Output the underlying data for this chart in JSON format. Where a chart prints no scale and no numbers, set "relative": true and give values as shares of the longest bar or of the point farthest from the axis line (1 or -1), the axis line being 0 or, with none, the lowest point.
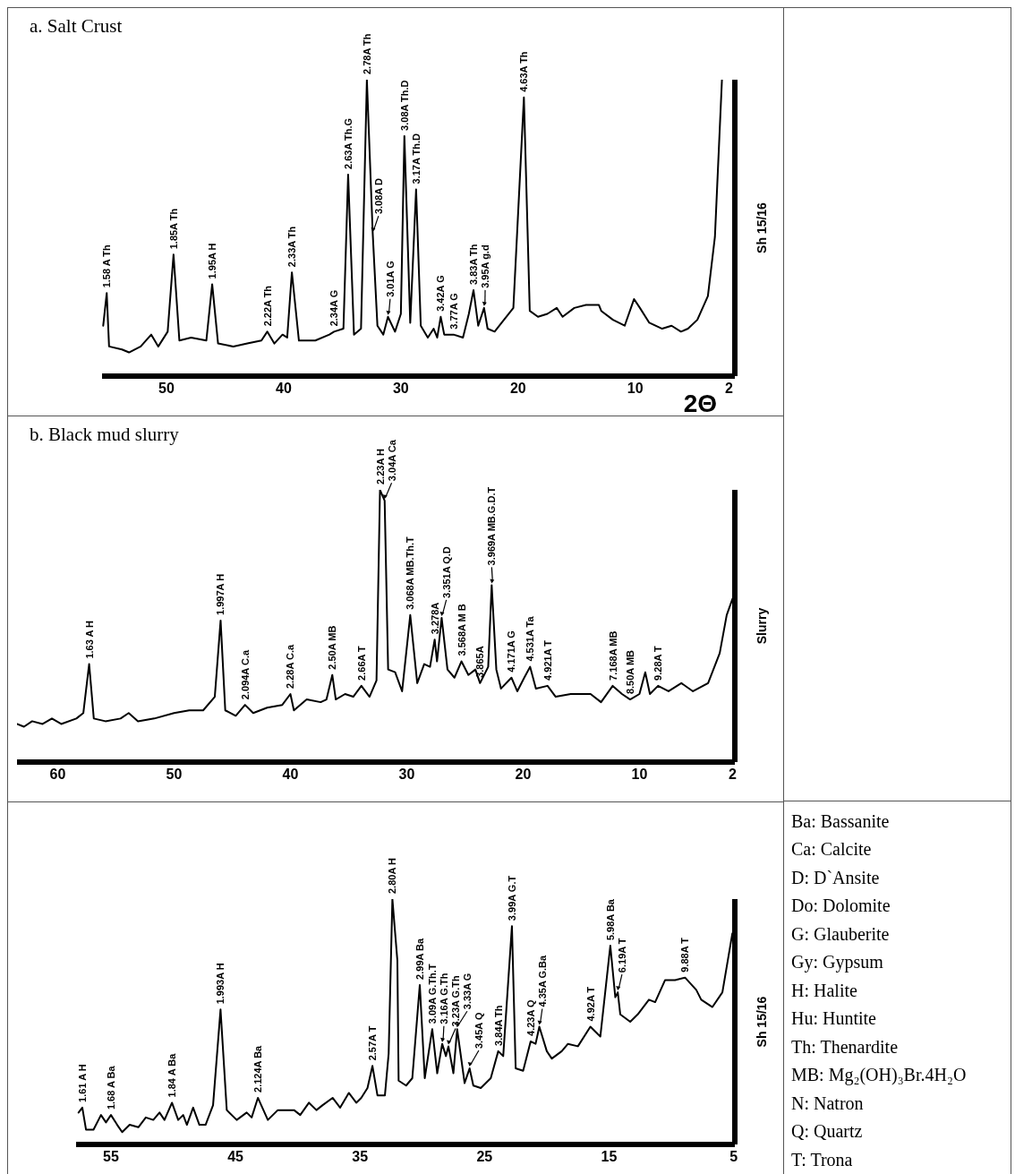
{
  "chart_data": [
    {
      "type": "line",
      "title": "a. Salt Crust",
      "xlabel": "2Θ",
      "ylabel": "Sh 15/16",
      "relative": true,
      "color": "#000000",
      "xlim": [
        55.5,
        1.5
      ],
      "xticks": [
        50,
        40,
        30,
        20,
        10,
        2
      ],
      "x": [
        55.4,
        55.1,
        54.9,
        53.8,
        53.2,
        52.2,
        51.3,
        50.7,
        49.9,
        49.4,
        48.9,
        47.9,
        46.6,
        46.1,
        45.6,
        44.3,
        43.1,
        41.9,
        41.4,
        40.8,
        40.1,
        39.7,
        39.3,
        38.7,
        37.3,
        36.1,
        35.7,
        34.9,
        34.5,
        34.0,
        33.4,
        32.9,
        32.4,
        32.0,
        31.5,
        31.1,
        30.5,
        30.0,
        29.7,
        29.2,
        28.7,
        28.3,
        27.7,
        27.2,
        26.9,
        26.6,
        26.3,
        25.5,
        24.7,
        24.2,
        23.8,
        23.4,
        22.9,
        22.6,
        22.0,
        21.4,
        20.4,
        19.5,
        19.0,
        18.3,
        17.5,
        16.7,
        16.2,
        15.2,
        14.2,
        13.1,
        12.9,
        11.9,
        10.9,
        10.1,
        9.6,
        8.8,
        7.7,
        6.9,
        6.1,
        5.5,
        4.7,
        3.8,
        3.2,
        2.6
      ],
      "values": [
        0.17,
        0.28,
        0.1,
        0.09,
        0.08,
        0.1,
        0.14,
        0.1,
        0.15,
        0.41,
        0.12,
        0.13,
        0.12,
        0.31,
        0.11,
        0.1,
        0.11,
        0.12,
        0.15,
        0.11,
        0.14,
        0.13,
        0.35,
        0.12,
        0.12,
        0.14,
        0.15,
        0.16,
        0.68,
        0.14,
        0.16,
        1.0,
        0.48,
        0.17,
        0.14,
        0.2,
        0.15,
        0.21,
        0.81,
        0.18,
        0.63,
        0.17,
        0.13,
        0.16,
        0.13,
        0.2,
        0.14,
        0.14,
        0.13,
        0.21,
        0.29,
        0.17,
        0.23,
        0.16,
        0.15,
        0.18,
        0.23,
        0.94,
        0.22,
        0.2,
        0.21,
        0.23,
        0.2,
        0.23,
        0.24,
        0.24,
        0.22,
        0.19,
        0.17,
        0.26,
        0.23,
        0.18,
        0.16,
        0.17,
        0.15,
        0.16,
        0.19,
        0.27,
        0.47,
        1.0
      ],
      "annotations": [
        {
          "text": "1.58 A Th",
          "x": 55.1,
          "y": 0.28
        },
        {
          "text": "1.85A Th",
          "x": 49.4,
          "y": 0.41
        },
        {
          "text": "1.95A H",
          "x": 46.1,
          "y": 0.31
        },
        {
          "text": "2.22A Th",
          "x": 41.4,
          "y": 0.15
        },
        {
          "text": "2.33A Th",
          "x": 39.3,
          "y": 0.35
        },
        {
          "text": "2.34A G",
          "x": 35.7,
          "y": 0.15
        },
        {
          "text": "2.63A Th.G",
          "x": 34.5,
          "y": 0.68
        },
        {
          "text": "2.78A Th",
          "x": 32.9,
          "y": 1.0
        },
        {
          "text": "3.08A D",
          "x": 32.4,
          "y": 0.48
        },
        {
          "text": "3.01A G",
          "x": 31.1,
          "y": 0.2
        },
        {
          "text": "3.08A Th.D",
          "x": 29.7,
          "y": 0.81
        },
        {
          "text": "3.17A Th.D",
          "x": 28.7,
          "y": 0.63
        },
        {
          "text": "3.42A G",
          "x": 26.6,
          "y": 0.2
        },
        {
          "text": "3.77A G",
          "x": 25.5,
          "y": 0.14
        },
        {
          "text": "3.83A Th",
          "x": 23.8,
          "y": 0.29
        },
        {
          "text": "3.95A g.d",
          "x": 22.9,
          "y": 0.23
        },
        {
          "text": "4.63A Th",
          "x": 19.5,
          "y": 0.94
        }
      ]
    },
    {
      "type": "line",
      "title": "b. Black mud slurry",
      "ylabel": "Slurry",
      "relative": true,
      "color": "#000000",
      "xlim": [
        63.5,
        1.8
      ],
      "xticks": [
        60,
        50,
        40,
        30,
        20,
        10,
        2
      ],
      "x": [
        63.5,
        62.9,
        62.2,
        61.3,
        60.5,
        59.7,
        58.4,
        57.8,
        57.3,
        56.9,
        55.9,
        54.6,
        53.9,
        53.1,
        51.7,
        50.0,
        48.7,
        47.5,
        46.5,
        46.0,
        45.6,
        44.7,
        43.9,
        43.2,
        42.0,
        40.7,
        40.0,
        39.7,
        38.6,
        37.4,
        36.9,
        36.4,
        36.1,
        35.3,
        34.6,
        33.9,
        33.2,
        32.6,
        32.3,
        32.1,
        31.9,
        31.6,
        31.0,
        30.4,
        29.7,
        29.1,
        28.5,
        28.0,
        27.6,
        27.4,
        27.0,
        26.5,
        25.9,
        25.3,
        24.7,
        24.1,
        23.7,
        23.0,
        22.7,
        22.3,
        21.9,
        21.0,
        20.5,
        19.9,
        19.4,
        18.9,
        17.9,
        17.2,
        15.9,
        14.2,
        13.3,
        12.3,
        11.5,
        10.8,
        10.0,
        9.5,
        9.1,
        8.4,
        7.5,
        6.4,
        5.4,
        4.1,
        3.1,
        2.5,
        2.0
      ],
      "values": [
        0.14,
        0.13,
        0.15,
        0.14,
        0.16,
        0.14,
        0.16,
        0.18,
        0.36,
        0.16,
        0.15,
        0.16,
        0.18,
        0.15,
        0.16,
        0.18,
        0.19,
        0.19,
        0.24,
        0.52,
        0.19,
        0.17,
        0.21,
        0.18,
        0.2,
        0.21,
        0.25,
        0.19,
        0.23,
        0.22,
        0.23,
        0.32,
        0.23,
        0.25,
        0.24,
        0.28,
        0.24,
        0.3,
        1.0,
        0.98,
        0.96,
        0.34,
        0.33,
        0.26,
        0.54,
        0.29,
        0.36,
        0.35,
        0.45,
        0.37,
        0.53,
        0.34,
        0.31,
        0.37,
        0.32,
        0.34,
        0.29,
        0.35,
        0.65,
        0.34,
        0.27,
        0.31,
        0.26,
        0.31,
        0.35,
        0.27,
        0.28,
        0.24,
        0.25,
        0.25,
        0.22,
        0.28,
        0.25,
        0.23,
        0.25,
        0.33,
        0.25,
        0.28,
        0.26,
        0.29,
        0.26,
        0.29,
        0.4,
        0.54,
        0.6
      ],
      "annotations": [
        {
          "text": "1.63 A H",
          "x": 57.3,
          "y": 0.36
        },
        {
          "text": "1.997A H",
          "x": 46.0,
          "y": 0.52
        },
        {
          "text": "2.094A C.a",
          "x": 43.9,
          "y": 0.21
        },
        {
          "text": "2.28A C.a",
          "x": 40.0,
          "y": 0.25
        },
        {
          "text": "2.50A MB",
          "x": 36.4,
          "y": 0.32
        },
        {
          "text": "2.66A T",
          "x": 33.9,
          "y": 0.28
        },
        {
          "text": "2.23A H",
          "x": 32.3,
          "y": 1.0
        },
        {
          "text": "3.04A Ca",
          "x": 31.9,
          "y": 0.96
        },
        {
          "text": "3.068A MB.Th.T",
          "x": 29.7,
          "y": 0.54
        },
        {
          "text": "3.278A",
          "x": 27.6,
          "y": 0.45
        },
        {
          "text": "3.351A Q.D",
          "x": 27.0,
          "y": 0.53
        },
        {
          "text": "3.568A M B",
          "x": 25.3,
          "y": 0.37
        },
        {
          "text": "3.865A",
          "x": 23.7,
          "y": 0.29
        },
        {
          "text": "3.969A MB.G.D.T",
          "x": 22.7,
          "y": 0.65
        },
        {
          "text": "4.171A G",
          "x": 21.0,
          "y": 0.31
        },
        {
          "text": "4.531A Ta",
          "x": 19.4,
          "y": 0.35
        },
        {
          "text": "4.921A T",
          "x": 17.9,
          "y": 0.28
        },
        {
          "text": "7.168A MB",
          "x": 12.3,
          "y": 0.28
        },
        {
          "text": "8.50A MB",
          "x": 10.8,
          "y": 0.23
        },
        {
          "text": "9.28A T",
          "x": 8.4,
          "y": 0.28
        }
      ]
    },
    {
      "type": "line",
      "ylabel": "Sh 15/16",
      "relative": true,
      "color": "#000000",
      "xlim": [
        57.8,
        4.9
      ],
      "xticks": [
        55,
        45,
        35,
        25,
        15,
        5
      ],
      "x": [
        57.6,
        57.3,
        57.0,
        56.4,
        55.8,
        55.4,
        55.0,
        54.5,
        54.1,
        53.5,
        52.8,
        52.2,
        51.6,
        51.1,
        50.7,
        50.1,
        49.6,
        49.2,
        48.9,
        48.4,
        47.9,
        47.4,
        46.8,
        46.2,
        45.7,
        44.9,
        44.1,
        43.7,
        43.2,
        42.4,
        41.6,
        40.3,
        39.8,
        39.1,
        38.5,
        38.0,
        37.2,
        36.6,
        35.9,
        35.3,
        34.9,
        34.4,
        34.0,
        33.6,
        33.0,
        32.7,
        32.4,
        32.0,
        31.9,
        31.3,
        30.8,
        30.2,
        29.8,
        29.2,
        28.8,
        28.4,
        28.1,
        27.9,
        27.5,
        27.2,
        26.6,
        26.2,
        25.9,
        25.3,
        24.5,
        23.9,
        23.5,
        22.8,
        22.5,
        21.9,
        21.3,
        20.9,
        20.6,
        20.0,
        19.6,
        18.8,
        18.3,
        17.5,
        16.5,
        15.7,
        14.9,
        14.5,
        14.3,
        14.1,
        13.3,
        12.7,
        11.8,
        11.3,
        10.5,
        9.7,
        8.9,
        8.0,
        7.6,
        6.7,
        5.9,
        5.1
      ],
      "values": [
        0.13,
        0.15,
        0.06,
        0.06,
        0.12,
        0.09,
        0.12,
        0.08,
        0.05,
        0.08,
        0.07,
        0.11,
        0.1,
        0.13,
        0.1,
        0.17,
        0.1,
        0.12,
        0.08,
        0.15,
        0.08,
        0.08,
        0.16,
        0.55,
        0.14,
        0.1,
        0.13,
        0.11,
        0.19,
        0.1,
        0.14,
        0.14,
        0.12,
        0.17,
        0.14,
        0.16,
        0.19,
        0.15,
        0.21,
        0.17,
        0.19,
        0.23,
        0.32,
        0.2,
        0.2,
        0.37,
        1.0,
        0.75,
        0.26,
        0.24,
        0.27,
        0.65,
        0.27,
        0.47,
        0.29,
        0.41,
        0.36,
        0.4,
        0.29,
        0.47,
        0.25,
        0.31,
        0.24,
        0.23,
        0.27,
        0.38,
        0.36,
        0.89,
        0.31,
        0.3,
        0.42,
        0.41,
        0.48,
        0.38,
        0.35,
        0.38,
        0.41,
        0.4,
        0.48,
        0.44,
        0.81,
        0.6,
        0.62,
        0.53,
        0.5,
        0.53,
        0.59,
        0.58,
        0.67,
        0.67,
        0.68,
        0.63,
        0.59,
        0.56,
        0.62,
        0.86
      ],
      "annotations": [
        {
          "text": "1.61 A H",
          "x": 57.3,
          "y": 0.15
        },
        {
          "text": "1.68 A Ba",
          "x": 55.0,
          "y": 0.12
        },
        {
          "text": "1.84 A Ba",
          "x": 50.1,
          "y": 0.17
        },
        {
          "text": "1.993A H",
          "x": 46.2,
          "y": 0.55
        },
        {
          "text": "2.124A Ba",
          "x": 43.2,
          "y": 0.19
        },
        {
          "text": "2.57A T",
          "x": 34.0,
          "y": 0.32
        },
        {
          "text": "2.80A H",
          "x": 32.4,
          "y": 1.0
        },
        {
          "text": "2.99A Ba",
          "x": 30.2,
          "y": 0.65
        },
        {
          "text": "3.09A G.Th.T",
          "x": 29.2,
          "y": 0.47
        },
        {
          "text": "3.16A G.Th",
          "x": 28.4,
          "y": 0.41
        },
        {
          "text": "3.23A G.Th",
          "x": 27.9,
          "y": 0.4
        },
        {
          "text": "3.33A G",
          "x": 27.2,
          "y": 0.47
        },
        {
          "text": "3.45A Q",
          "x": 26.2,
          "y": 0.31
        },
        {
          "text": "3.84A Th",
          "x": 23.9,
          "y": 0.38
        },
        {
          "text": "3.99A G.T",
          "x": 22.8,
          "y": 0.89
        },
        {
          "text": "4.23A Q",
          "x": 21.3,
          "y": 0.42
        },
        {
          "text": "4.35A G.Ba",
          "x": 20.6,
          "y": 0.48
        },
        {
          "text": "4.92A T",
          "x": 16.5,
          "y": 0.48
        },
        {
          "text": "5.98A Ba",
          "x": 14.9,
          "y": 0.81
        },
        {
          "text": "6.19A T",
          "x": 14.3,
          "y": 0.62
        },
        {
          "text": "9.88A T",
          "x": 8.9,
          "y": 0.68
        }
      ]
    },
    {
      "type": "other",
      "annotations": [
        "Ba: Bassanite",
        "Ca: Calcite",
        "D: D`Ansite",
        "Do: Dolomite",
        "G: Glauberite",
        "Gy: Gypsum",
        "H: Halite",
        "Hu: Huntite",
        "Th: Thenardite",
        "MB: Mg₂(OH)₃Br.4H₂O",
        "N: Natron",
        "Q: Quartz",
        "T: Trona"
      ]
    }
  ]
}
